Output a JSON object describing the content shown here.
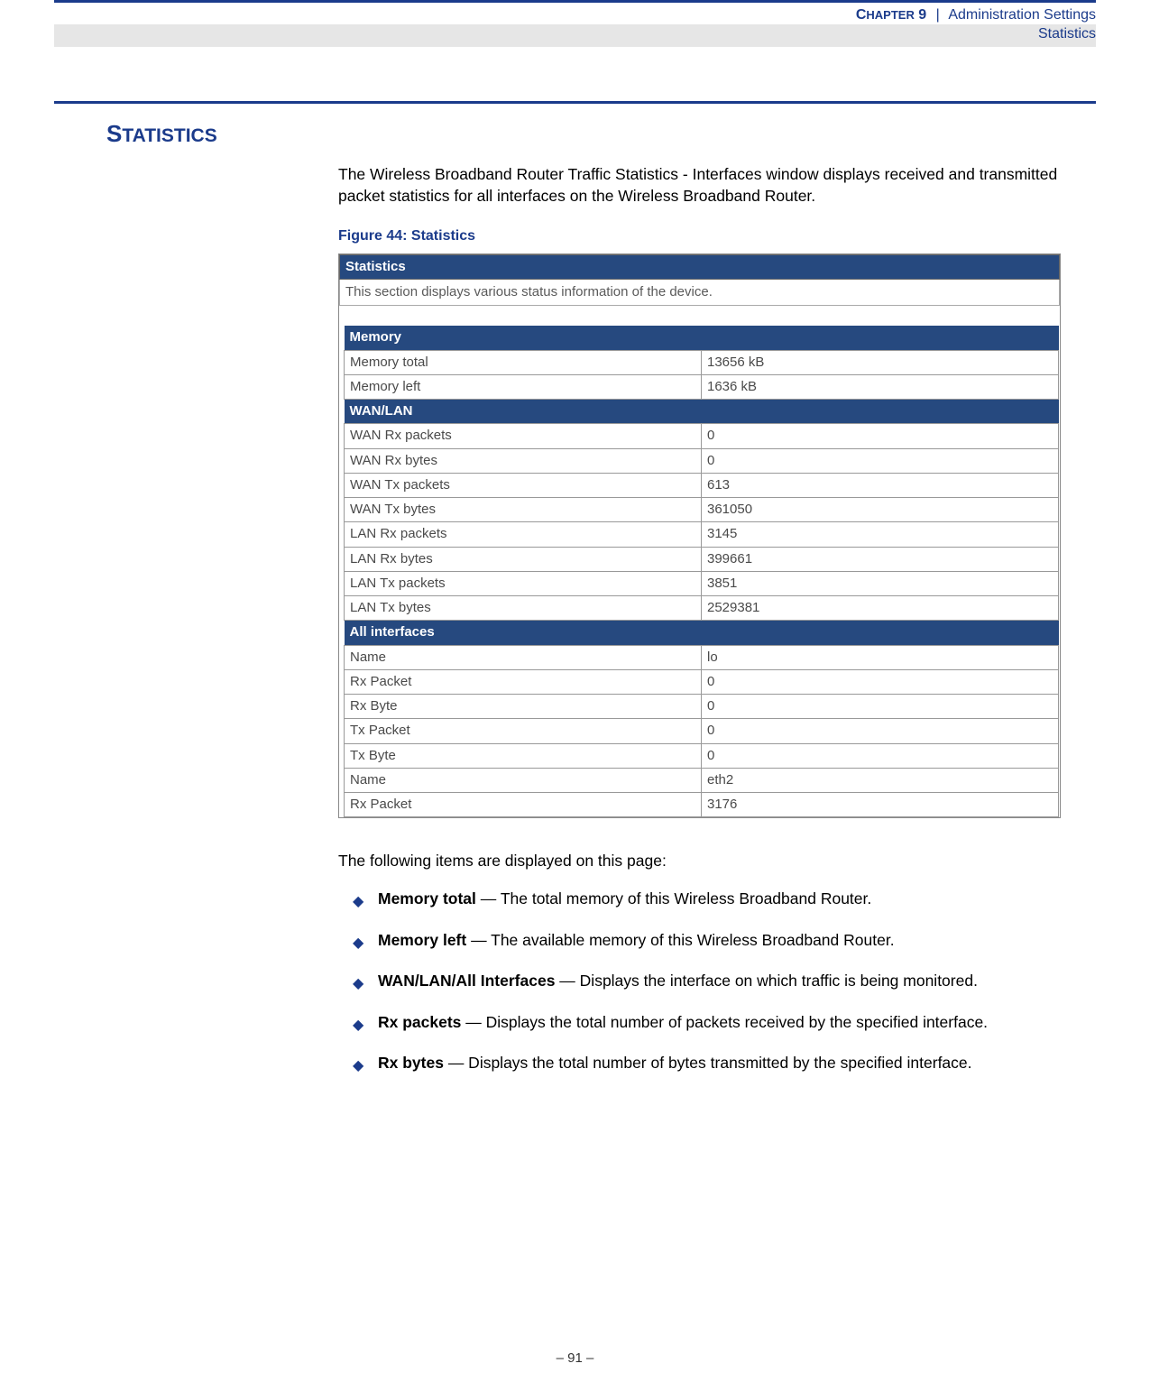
{
  "header": {
    "chapter_caps": "C",
    "chapter_rest": "HAPTER",
    "chapter_num": " 9",
    "pipe": "|",
    "section": "Administration Settings",
    "subtitle": "Statistics"
  },
  "section_title": {
    "firstcap": "S",
    "rest": "TATISTICS"
  },
  "intro": "The Wireless Broadband Router Traffic Statistics - Interfaces window displays received and transmitted packet statistics for all interfaces on the Wireless Broadband Router.",
  "figure": {
    "label": "Figure 44:  Statistics",
    "panel_title": "Statistics",
    "panel_desc": "This section displays various status information of the device.",
    "groups": [
      {
        "title": "Memory",
        "rows": [
          {
            "label": "Memory total",
            "value": "13656 kB"
          },
          {
            "label": "Memory left",
            "value": "1636 kB"
          }
        ]
      },
      {
        "title": "WAN/LAN",
        "rows": [
          {
            "label": "WAN Rx packets",
            "value": "0"
          },
          {
            "label": "WAN Rx bytes",
            "value": "0"
          },
          {
            "label": "WAN Tx packets",
            "value": "613"
          },
          {
            "label": "WAN Tx bytes",
            "value": "361050"
          },
          {
            "label": "LAN Rx packets",
            "value": "3145"
          },
          {
            "label": "LAN Rx bytes",
            "value": "399661"
          },
          {
            "label": "LAN Tx packets",
            "value": "3851"
          },
          {
            "label": "LAN Tx bytes",
            "value": "2529381"
          }
        ]
      },
      {
        "title": "All interfaces",
        "rows": [
          {
            "label": "Name",
            "value": "lo"
          },
          {
            "label": "Rx Packet",
            "value": "0"
          },
          {
            "label": "Rx Byte",
            "value": "0"
          },
          {
            "label": "Tx Packet",
            "value": "0"
          },
          {
            "label": "Tx Byte",
            "value": "0"
          },
          {
            "label": "Name",
            "value": "eth2"
          },
          {
            "label": "Rx Packet",
            "value": "3176"
          }
        ]
      }
    ]
  },
  "after_text": "The following items are displayed on this page:",
  "bullets": [
    {
      "term": "Memory total",
      "desc": " — The total memory of this Wireless Broadband Router."
    },
    {
      "term": "Memory left",
      "desc": " — The available memory of this Wireless Broadband Router."
    },
    {
      "term": "WAN/LAN/All Interfaces",
      "desc": " — Displays the interface on which traffic is being monitored."
    },
    {
      "term": "Rx packets",
      "desc": " — Displays the total number of packets received by the specified interface."
    },
    {
      "term": "Rx bytes",
      "desc": " — Displays the total number of bytes transmitted by the specified interface."
    }
  ],
  "footer": "–  91  –",
  "colors": {
    "brand_blue": "#1b3b8b",
    "header_dark": "#26497f",
    "grey_bg": "#e6e6e6"
  }
}
